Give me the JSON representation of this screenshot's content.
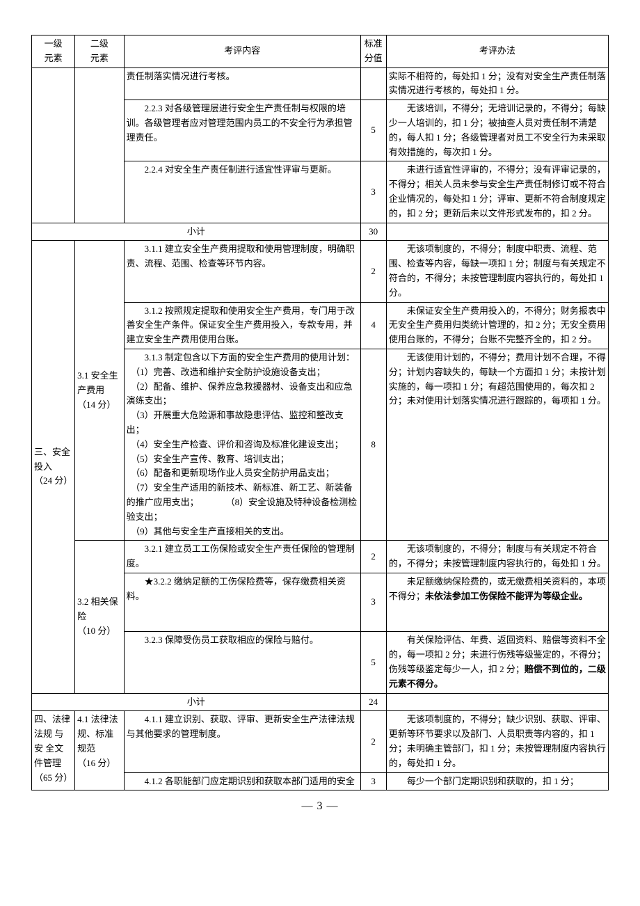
{
  "header": {
    "l1": "一级\n元素",
    "l2": "二级\n元素",
    "content": "考评内容",
    "score": "标准\n分值",
    "method": "考评办法"
  },
  "rows": [
    {
      "content": "责任制落实情况进行考核。",
      "score": "",
      "method": "实际不相符的，每处扣 1 分；没有对安全生产责任制落实情况进行考核的，每处扣 1 分。"
    },
    {
      "content": "　　2.2.3 对各级管理层进行安全生产责任制与权限的培训。各级管理者应对管理范围内员工的不安全行为承担管理责任。",
      "score": "5",
      "method": "　　无该培训，不得分；无培训记录的，不得分；每缺少一人培训的，扣 1 分；被抽查人员对责任制不清楚的，每人扣 1 分；各级管理者对员工不安全行为未采取有效措施的，每次扣 1 分。"
    },
    {
      "content": "　　2.2.4 对安全生产责任制进行适宜性评审与更新。",
      "score": "3",
      "method": "　　未进行适宜性评审的，不得分；没有评审记录的，不得分；相关人员未参与安全生产责任制修订或不符合企业情况的，每处扣 1 分；评审、更新不符合制度规定的，扣 2 分；更新后未以文件形式发布的，扣 2 分。"
    },
    {
      "subtotal": "小计",
      "score": "30"
    },
    {
      "l1": "三、安全投入\n（24 分）",
      "l2a": "3.1 安全生产费用\n（14 分）",
      "content": "　　3.1.1 建立安全生产费用提取和使用管理制度，明确职责、流程、范围、检查等环节内容。",
      "score": "2",
      "method": "　　无该项制度的，不得分；制度中职责、流程、范围、检查等内容，每缺一项扣 1 分；制度与有关规定不符合的，不得分；未按管理制度内容执行的，每处扣 1 分。"
    },
    {
      "content": "　　3.1.2 按照规定提取和使用安全生产费用，专门用于改善安全生产条件。保证安全生产费用投入，专款专用，并建立安全生产费用使用台账。",
      "score": "4",
      "method": "　　未保证安全生产费用投入的，不得分；财务报表中无安全生产费用归类统计管理的，扣 2 分；无安全费用使用台账的，不得分；台账不完整齐全的，扣 2 分。"
    },
    {
      "content": "　　3.1.3 制定包含以下方面的安全生产费用的使用计划：\n　（1）完善、改造和维护安全防护设施设备支出；\n　（2）配备、维护、保养应急救援器材、设备支出和应急演练支出；\n　（3）开展重大危险源和事故隐患评估、监控和整改支出；\n　（4）安全生产检查、评价和咨询及标准化建设支出；\n　（5）安全生产宣传、教育、培训支出；\n　（6）配备和更新现场作业人员安全防护用品支出；\n　（7）安全生产适用的新技术、新标准、新工艺、新装备的推广应用支出；　　　　（8）安全设施及特种设备检测检验支出；\n　（9）其他与安全生产直接相关的支出。",
      "score": "8",
      "method": "　　无该使用计划的，不得分；费用计划不合理，不得分；计划内容缺失的，每缺一个方面扣 1 分；未按计划实施的，每一项扣 1 分；有超范围使用的，每次扣 2 分；未对使用计划落实情况进行跟踪的，每项扣 1 分。"
    },
    {
      "l2b": "3.2 相关保险\n（10 分）",
      "content": "　　3.2.1 建立员工工伤保险或安全生产责任保险的管理制度。",
      "score": "2",
      "method": "　　无该项制度的，不得分；制度与有关规定不符合的，不得分；未按管理制度内容执行的，每处扣 1 分。"
    },
    {
      "content": "　　★3.2.2 缴纳足额的工伤保险费等，保存缴费相关资料。",
      "score": "3",
      "method_pre": "　　未足额缴纳保险费的，或无缴费相关资料的，本项不得分；",
      "method_bold": "未依法参加工伤保险不能评为等级企业。"
    },
    {
      "content": "　　3.2.3 保障受伤员工获取相应的保险与赔付。",
      "score": "5",
      "method_pre": "　　有关保险评估、年费、返回资料、赔偿等资料不全的，每一项扣 2 分；未进行伤残等级鉴定的，不得分；伤残等级鉴定每少一人，扣 2 分；",
      "method_bold": "赔偿不到位的，二级元素不得分。"
    },
    {
      "subtotal": "小计",
      "score": "24"
    },
    {
      "l1b": "四、法律法规 与 安 全文件管理\n（65 分）",
      "l2c": "4.1 法律法规、标准规范\n（16 分）",
      "content": "　　4.1.1 建立识别、获取、评审、更新安全生产法律法规与其他要求的管理制度。",
      "score": "2",
      "method": "　　无该项制度的，不得分；缺少识别、获取、评审、更新等环节要求以及部门、人员职责等内容的，扣 1 分；未明确主管部门，扣 1 分；未按管理制度内容执行的，每处扣 1 分。"
    },
    {
      "content": "　　4.1.2 各职能部门应定期识别和获取本部门适用的安全",
      "score": "3",
      "method": "　　每少一个部门定期识别和获取的，扣 1 分；"
    }
  ],
  "pageno": "— 3 —"
}
